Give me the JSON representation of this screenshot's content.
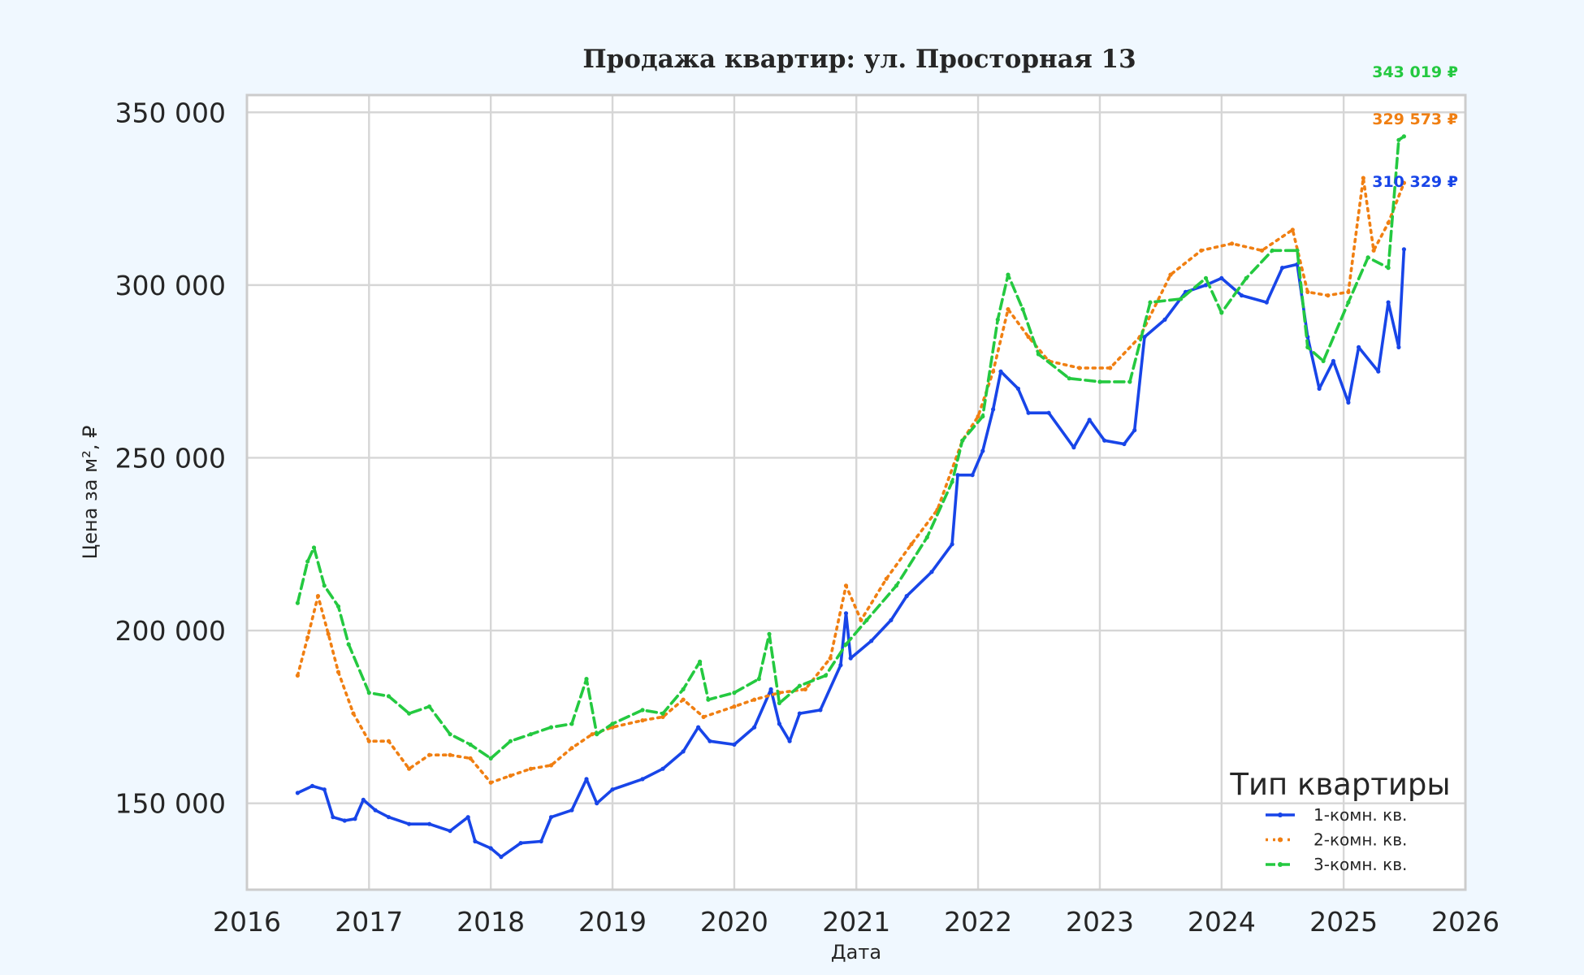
{
  "chart_data": {
    "type": "line",
    "title": "Продажа квартир: ул. Просторная 13",
    "xlabel": "Дата",
    "ylabel": "Цена за м², ₽",
    "xlim": [
      "2016-01-01",
      "2026-01-01"
    ],
    "ylim": [
      125000,
      355000
    ],
    "x_ticks": [
      "2016",
      "2017",
      "2018",
      "2019",
      "2020",
      "2021",
      "2022",
      "2023",
      "2024",
      "2025",
      "2026"
    ],
    "y_ticks": [
      150000,
      200000,
      250000,
      300000,
      350000
    ],
    "y_tick_labels": [
      "150 000",
      "200 000",
      "250 000",
      "300 000",
      "350 000"
    ],
    "grid": true,
    "legend": {
      "title": "Тип квартиры",
      "position": "lower-right"
    },
    "series": [
      {
        "name": "1-комн. кв.",
        "color": "#1845e8",
        "style": "solid",
        "end_label": "310 329 ₽",
        "points": [
          [
            "2016-06-01",
            153000
          ],
          [
            "2016-07-15",
            155000
          ],
          [
            "2016-08-20",
            154000
          ],
          [
            "2016-09-15",
            146000
          ],
          [
            "2016-10-20",
            145000
          ],
          [
            "2016-11-20",
            145500
          ],
          [
            "2016-12-15",
            151000
          ],
          [
            "2017-01-20",
            148000
          ],
          [
            "2017-03-01",
            146000
          ],
          [
            "2017-05-01",
            144000
          ],
          [
            "2017-07-01",
            144000
          ],
          [
            "2017-09-01",
            142000
          ],
          [
            "2017-10-25",
            146000
          ],
          [
            "2017-11-15",
            139000
          ],
          [
            "2018-01-01",
            137000
          ],
          [
            "2018-02-01",
            134500
          ],
          [
            "2018-04-01",
            138500
          ],
          [
            "2018-06-01",
            139000
          ],
          [
            "2018-07-01",
            146000
          ],
          [
            "2018-09-01",
            148000
          ],
          [
            "2018-10-15",
            157000
          ],
          [
            "2018-11-15",
            150000
          ],
          [
            "2019-01-01",
            154000
          ],
          [
            "2019-04-01",
            157000
          ],
          [
            "2019-06-01",
            160000
          ],
          [
            "2019-08-01",
            165000
          ],
          [
            "2019-09-15",
            172000
          ],
          [
            "2019-10-20",
            168000
          ],
          [
            "2020-01-01",
            167000
          ],
          [
            "2020-03-01",
            172000
          ],
          [
            "2020-04-20",
            183000
          ],
          [
            "2020-05-15",
            173000
          ],
          [
            "2020-06-15",
            168000
          ],
          [
            "2020-07-15",
            176000
          ],
          [
            "2020-09-15",
            177000
          ],
          [
            "2020-11-15",
            190000
          ],
          [
            "2020-12-01",
            205000
          ],
          [
            "2020-12-15",
            192000
          ],
          [
            "2021-02-15",
            197000
          ],
          [
            "2021-04-15",
            203000
          ],
          [
            "2021-06-01",
            210000
          ],
          [
            "2021-08-15",
            217000
          ],
          [
            "2021-10-15",
            225000
          ],
          [
            "2021-11-01",
            245000
          ],
          [
            "2021-12-15",
            245000
          ],
          [
            "2022-01-15",
            252000
          ],
          [
            "2022-02-15",
            264000
          ],
          [
            "2022-03-10",
            275000
          ],
          [
            "2022-05-01",
            270000
          ],
          [
            "2022-06-01",
            263000
          ],
          [
            "2022-08-01",
            263000
          ],
          [
            "2022-10-15",
            253000
          ],
          [
            "2022-12-01",
            261000
          ],
          [
            "2023-01-15",
            255000
          ],
          [
            "2023-03-15",
            254000
          ],
          [
            "2023-04-15",
            258000
          ],
          [
            "2023-05-15",
            285000
          ],
          [
            "2023-07-15",
            290000
          ],
          [
            "2023-09-15",
            298000
          ],
          [
            "2023-11-15",
            300000
          ],
          [
            "2024-01-01",
            302000
          ],
          [
            "2024-03-01",
            297000
          ],
          [
            "2024-05-15",
            295000
          ],
          [
            "2024-07-01",
            305000
          ],
          [
            "2024-08-15",
            306000
          ],
          [
            "2024-09-15",
            285000
          ],
          [
            "2024-10-20",
            270000
          ],
          [
            "2024-12-01",
            278000
          ],
          [
            "2025-01-15",
            266000
          ],
          [
            "2025-02-15",
            282000
          ],
          [
            "2025-04-15",
            275000
          ],
          [
            "2025-05-15",
            295000
          ],
          [
            "2025-06-15",
            282000
          ],
          [
            "2025-07-01",
            310329
          ]
        ]
      },
      {
        "name": "2-комн. кв.",
        "color": "#f07f12",
        "style": "dotted",
        "end_label": "329 573 ₽",
        "points": [
          [
            "2016-06-01",
            187000
          ],
          [
            "2016-07-01",
            198000
          ],
          [
            "2016-08-01",
            210000
          ],
          [
            "2016-09-01",
            199000
          ],
          [
            "2016-10-01",
            188000
          ],
          [
            "2016-11-15",
            176000
          ],
          [
            "2017-01-01",
            168000
          ],
          [
            "2017-03-01",
            168000
          ],
          [
            "2017-05-01",
            160000
          ],
          [
            "2017-07-01",
            164000
          ],
          [
            "2017-09-01",
            164000
          ],
          [
            "2017-11-01",
            163000
          ],
          [
            "2018-01-01",
            156000
          ],
          [
            "2018-03-01",
            158000
          ],
          [
            "2018-05-01",
            160000
          ],
          [
            "2018-07-01",
            161000
          ],
          [
            "2018-09-01",
            166000
          ],
          [
            "2018-11-01",
            170000
          ],
          [
            "2019-01-01",
            172000
          ],
          [
            "2019-04-01",
            174000
          ],
          [
            "2019-06-01",
            175000
          ],
          [
            "2019-08-01",
            180000
          ],
          [
            "2019-10-01",
            175000
          ],
          [
            "2020-01-01",
            178000
          ],
          [
            "2020-03-01",
            180000
          ],
          [
            "2020-05-15",
            182000
          ],
          [
            "2020-08-01",
            183000
          ],
          [
            "2020-10-15",
            192000
          ],
          [
            "2020-12-01",
            213000
          ],
          [
            "2021-01-15",
            203000
          ],
          [
            "2021-04-01",
            215000
          ],
          [
            "2021-06-15",
            225000
          ],
          [
            "2021-09-01",
            235000
          ],
          [
            "2021-11-15",
            255000
          ],
          [
            "2022-01-01",
            262000
          ],
          [
            "2022-02-15",
            275000
          ],
          [
            "2022-04-01",
            293000
          ],
          [
            "2022-06-01",
            285000
          ],
          [
            "2022-08-01",
            278000
          ],
          [
            "2022-11-01",
            276000
          ],
          [
            "2023-02-01",
            276000
          ],
          [
            "2023-05-01",
            285000
          ],
          [
            "2023-08-01",
            303000
          ],
          [
            "2023-11-01",
            310000
          ],
          [
            "2024-02-01",
            312000
          ],
          [
            "2024-05-01",
            310000
          ],
          [
            "2024-08-01",
            316000
          ],
          [
            "2024-09-15",
            298000
          ],
          [
            "2024-11-15",
            297000
          ],
          [
            "2025-01-15",
            298000
          ],
          [
            "2025-03-01",
            331000
          ],
          [
            "2025-04-01",
            310000
          ],
          [
            "2025-05-15",
            318000
          ],
          [
            "2025-07-01",
            329573
          ]
        ]
      },
      {
        "name": "3-комн. кв.",
        "color": "#24c940",
        "style": "dashed",
        "end_label": "343 019 ₽",
        "points": [
          [
            "2016-06-01",
            208000
          ],
          [
            "2016-07-01",
            220000
          ],
          [
            "2016-07-20",
            224000
          ],
          [
            "2016-08-20",
            213000
          ],
          [
            "2016-10-01",
            207000
          ],
          [
            "2016-11-01",
            196000
          ],
          [
            "2017-01-01",
            182000
          ],
          [
            "2017-03-01",
            181000
          ],
          [
            "2017-05-01",
            176000
          ],
          [
            "2017-07-01",
            178000
          ],
          [
            "2017-09-01",
            170000
          ],
          [
            "2017-11-01",
            167000
          ],
          [
            "2018-01-01",
            163000
          ],
          [
            "2018-03-01",
            168000
          ],
          [
            "2018-05-01",
            170000
          ],
          [
            "2018-07-01",
            172000
          ],
          [
            "2018-09-01",
            173000
          ],
          [
            "2018-10-15",
            186000
          ],
          [
            "2018-11-15",
            170000
          ],
          [
            "2019-01-01",
            173000
          ],
          [
            "2019-04-01",
            177000
          ],
          [
            "2019-06-01",
            176000
          ],
          [
            "2019-08-01",
            183000
          ],
          [
            "2019-09-20",
            191000
          ],
          [
            "2019-10-15",
            180000
          ],
          [
            "2020-01-01",
            182000
          ],
          [
            "2020-03-15",
            186000
          ],
          [
            "2020-04-15",
            199000
          ],
          [
            "2020-05-15",
            179000
          ],
          [
            "2020-07-15",
            184000
          ],
          [
            "2020-10-01",
            187000
          ],
          [
            "2020-12-01",
            196000
          ],
          [
            "2021-02-01",
            203000
          ],
          [
            "2021-05-01",
            213000
          ],
          [
            "2021-08-01",
            227000
          ],
          [
            "2021-10-15",
            243000
          ],
          [
            "2021-11-15",
            255000
          ],
          [
            "2022-01-15",
            262000
          ],
          [
            "2022-03-01",
            290000
          ],
          [
            "2022-04-01",
            303000
          ],
          [
            "2022-05-15",
            293000
          ],
          [
            "2022-07-01",
            280000
          ],
          [
            "2022-10-01",
            273000
          ],
          [
            "2023-01-01",
            272000
          ],
          [
            "2023-04-01",
            272000
          ],
          [
            "2023-06-01",
            295000
          ],
          [
            "2023-09-01",
            296000
          ],
          [
            "2023-11-15",
            302000
          ],
          [
            "2024-01-01",
            292000
          ],
          [
            "2024-03-15",
            302000
          ],
          [
            "2024-06-01",
            310000
          ],
          [
            "2024-08-15",
            310000
          ],
          [
            "2024-09-15",
            282000
          ],
          [
            "2024-11-01",
            278000
          ],
          [
            "2025-01-15",
            295000
          ],
          [
            "2025-03-15",
            308000
          ],
          [
            "2025-05-15",
            305000
          ],
          [
            "2025-06-15",
            342000
          ],
          [
            "2025-07-01",
            343019
          ]
        ]
      }
    ]
  }
}
